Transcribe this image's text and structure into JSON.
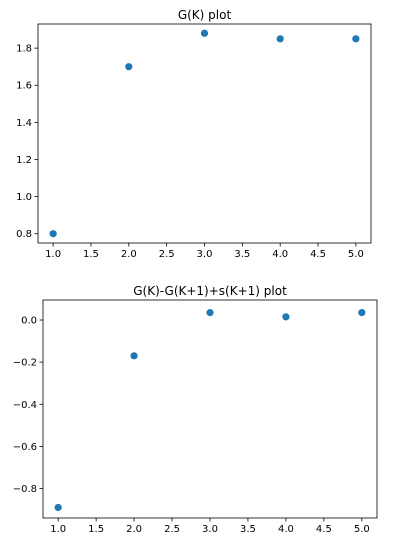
{
  "chart_data": [
    {
      "type": "scatter",
      "title": "G(K) plot",
      "xlabel": "",
      "ylabel": "",
      "x": [
        1,
        2,
        3,
        4,
        5
      ],
      "y": [
        0.8,
        1.7,
        1.88,
        1.85,
        1.85
      ],
      "xlim": [
        0.8,
        5.2
      ],
      "ylim": [
        0.75,
        1.93
      ],
      "xticks": [
        1.0,
        1.5,
        2.0,
        2.5,
        3.0,
        3.5,
        4.0,
        4.5,
        5.0
      ],
      "xtick_labels": [
        "1.0",
        "1.5",
        "2.0",
        "2.5",
        "3.0",
        "3.5",
        "4.0",
        "4.5",
        "5.0"
      ],
      "yticks": [
        0.8,
        1.0,
        1.2,
        1.4,
        1.6,
        1.8
      ],
      "ytick_labels": [
        "0.8",
        "1.0",
        "1.2",
        "1.4",
        "1.6",
        "1.8"
      ],
      "grid": false,
      "marker_color": "#1f77b4"
    },
    {
      "type": "scatter",
      "title": "G(K)-G(K+1)+s(K+1) plot",
      "xlabel": "",
      "ylabel": "",
      "x": [
        1,
        2,
        3,
        4,
        5
      ],
      "y": [
        -0.89,
        -0.17,
        0.035,
        0.015,
        0.035
      ],
      "xlim": [
        0.8,
        5.2
      ],
      "ylim": [
        -0.94,
        0.095
      ],
      "xticks": [
        1.0,
        1.5,
        2.0,
        2.5,
        3.0,
        3.5,
        4.0,
        4.5,
        5.0
      ],
      "xtick_labels": [
        "1.0",
        "1.5",
        "2.0",
        "2.5",
        "3.0",
        "3.5",
        "4.0",
        "4.5",
        "5.0"
      ],
      "yticks": [
        -0.8,
        -0.6,
        -0.4,
        -0.2,
        0.0
      ],
      "ytick_labels": [
        "−0.8",
        "−0.6",
        "−0.4",
        "−0.2",
        "0.0"
      ],
      "grid": false,
      "marker_color": "#1f77b4"
    }
  ]
}
